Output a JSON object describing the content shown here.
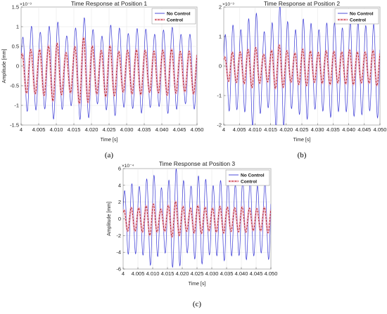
{
  "colors": {
    "no_control": "#3a3ad6",
    "control_dash": "#b01010",
    "control_band": "#f2a6b8",
    "axis": "#444444"
  },
  "chart_data": [
    {
      "type": "line",
      "panel_label": "(a)",
      "title": "Time Response at Position 1",
      "xlabel": "Time [s]",
      "ylabel": "Amplitude [mm]",
      "exponent": "×10⁻³",
      "xlim": [
        4,
        4.05
      ],
      "ylim": [
        -1.5,
        1.5
      ],
      "xticks": [
        4,
        4.005,
        4.01,
        4.015,
        4.02,
        4.025,
        4.03,
        4.035,
        4.04,
        4.045,
        4.05
      ],
      "xtick_labels": [
        "4",
        "4.005",
        "4.010",
        "4.015",
        "4.020",
        "4.025",
        "4.030",
        "4.035",
        "4.040",
        "4.045",
        "4.050"
      ],
      "yticks": [
        -1.5,
        -1,
        -0.5,
        0,
        0.5,
        1,
        1.5
      ],
      "ytick_labels": [
        "-1.5",
        "-1",
        "-0.5",
        "0",
        "0.5",
        "1",
        "1.5"
      ],
      "grid": true,
      "legend": "top-right",
      "series": [
        {
          "name": "No Control",
          "style": "solid",
          "peaks": [
            0.7,
            1.05,
            1.1,
            1.05,
            1.15,
            0.95,
            1.05,
            1.2,
            1.15,
            0.9,
            1.0,
            1.1,
            1.05,
            0.95,
            1.0,
            1.05,
            0.95,
            1.0,
            1.05,
            0.9
          ],
          "offset": -0.1
        },
        {
          "name": "Control",
          "style": "dashed",
          "peaks": [
            0.4,
            0.55,
            0.65,
            0.6,
            0.7,
            0.55,
            0.6,
            0.8,
            0.75,
            0.55,
            0.6,
            0.55,
            0.6,
            0.5,
            0.55,
            0.6,
            0.5,
            0.55,
            0.6,
            0.5
          ],
          "offset": -0.15
        }
      ]
    },
    {
      "type": "line",
      "panel_label": "(b)",
      "title": "Time Response at Position 2",
      "xlabel": "Time [s]",
      "ylabel": "",
      "exponent": "×10⁻³",
      "xlim": [
        4,
        4.05
      ],
      "ylim": [
        -2,
        2
      ],
      "xticks": [
        4,
        4.005,
        4.01,
        4.015,
        4.02,
        4.025,
        4.03,
        4.035,
        4.04,
        4.045,
        4.05
      ],
      "xtick_labels": [
        "4",
        "4.005",
        "4.010",
        "4.015",
        "4.020",
        "4.025",
        "4.030",
        "4.035",
        "4.040",
        "4.045",
        "4.050"
      ],
      "yticks": [
        -2,
        -1,
        0,
        1,
        2
      ],
      "ytick_labels": [
        "-2",
        "-1",
        "0",
        "1",
        "2"
      ],
      "grid": true,
      "legend": "top-right",
      "series": [
        {
          "name": "No Control",
          "style": "solid",
          "peaks": [
            1.0,
            1.4,
            1.5,
            1.6,
            1.8,
            1.4,
            1.5,
            1.95,
            1.8,
            1.4,
            1.5,
            1.6,
            1.5,
            1.4,
            1.5,
            1.6,
            1.5,
            1.4,
            1.7,
            1.5
          ],
          "offset": -0.1
        },
        {
          "name": "Control",
          "style": "dashed",
          "peaks": [
            0.3,
            0.5,
            0.6,
            0.55,
            0.65,
            0.5,
            0.55,
            0.7,
            0.65,
            0.5,
            0.55,
            0.6,
            0.55,
            0.5,
            0.55,
            0.6,
            0.55,
            0.5,
            0.6,
            0.55
          ],
          "offset": -0.05
        }
      ]
    },
    {
      "type": "line",
      "panel_label": "(c)",
      "title": "Time Response at Position 3",
      "xlabel": "Time [s]",
      "ylabel": "Amplitude [mm]",
      "exponent": "×10⁻⁴",
      "xlim": [
        4,
        4.05
      ],
      "ylim": [
        -6,
        6
      ],
      "xticks": [
        4,
        4.005,
        4.01,
        4.015,
        4.02,
        4.025,
        4.03,
        4.035,
        4.04,
        4.045,
        4.05
      ],
      "xtick_labels": [
        "4",
        "4.005",
        "4.010",
        "4.015",
        "4.020",
        "4.025",
        "4.030",
        "4.035",
        "4.040",
        "4.045",
        "4.050"
      ],
      "yticks": [
        -6,
        -4,
        -2,
        0,
        2,
        4,
        6
      ],
      "ytick_labels": [
        "-6",
        "-4",
        "-2",
        "0",
        "2",
        "4",
        "6"
      ],
      "grid": true,
      "legend": "top-right",
      "series": [
        {
          "name": "No Control",
          "style": "solid",
          "peaks": [
            3.0,
            4.0,
            4.5,
            4.6,
            5.0,
            4.2,
            4.6,
            5.5,
            5.2,
            4.2,
            4.6,
            5.0,
            4.6,
            4.2,
            4.5,
            4.8,
            4.4,
            4.2,
            4.6,
            4.3
          ],
          "offset": -0.1
        },
        {
          "name": "Control",
          "style": "dashed",
          "peaks": [
            1.0,
            1.4,
            1.6,
            1.5,
            1.8,
            1.4,
            1.6,
            2.0,
            1.8,
            1.4,
            1.5,
            1.6,
            1.5,
            1.4,
            1.5,
            1.6,
            1.4,
            1.3,
            1.5,
            1.4
          ],
          "offset": -0.1
        }
      ]
    }
  ]
}
